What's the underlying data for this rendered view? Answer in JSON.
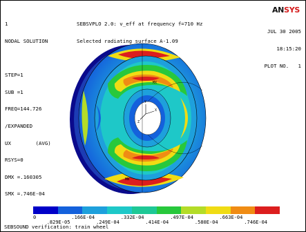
{
  "info": {
    "lines": [
      "1",
      "NODAL SOLUTION",
      "",
      "STEP=1",
      "SUB =1",
      "FREQ=144.726",
      "/EXPANDED",
      "UX        (AVG)",
      "RSYS=0",
      "DMX =.160305",
      "SMX =.746E-04"
    ]
  },
  "title": {
    "line1": "SEBSVPLO 2.0: v_eff at frequency f=710 Hz",
    "line2": "Selected radiating surface A-1.09"
  },
  "logo": {
    "part1": "AN",
    "part2": "SYS"
  },
  "date": {
    "line1": "JUL 30 2005",
    "line2": "18:15:20",
    "line3": "PLOT NO.   1"
  },
  "legend": {
    "colors": [
      "#0000c8",
      "#1461dc",
      "#1ea0dc",
      "#1ec8c8",
      "#1ec896",
      "#28c83c",
      "#b4dc28",
      "#f0dc14",
      "#f08c14",
      "#dc1e1e"
    ],
    "top_labels": [
      "0",
      ".166E-04",
      ".332E-04",
      ".497E-04",
      ".663E-04"
    ],
    "bottom_labels": [
      ".829E-05",
      ".249E-04",
      ".414E-04",
      ".580E-04",
      ".746E-04"
    ]
  },
  "caption": "SEBSOUND verification: train wheel",
  "triad_labels": {
    "x": "X",
    "y": "Y",
    "z": "Z"
  }
}
